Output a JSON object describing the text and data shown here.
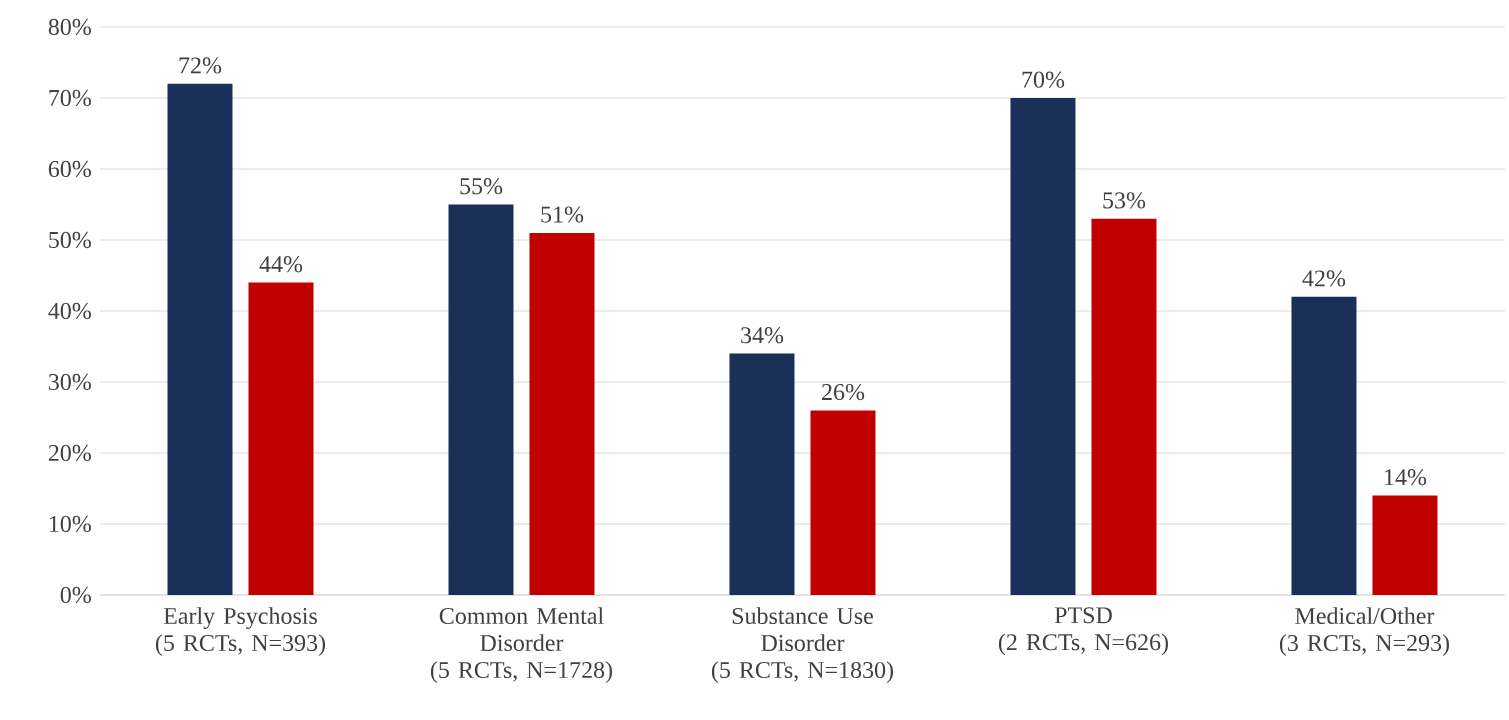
{
  "chart_data": {
    "type": "bar",
    "categories": [
      "Early Psychosis\n(5 RCTs, N=393)",
      "Common Mental\nDisorder\n(5 RCTs, N=1728)",
      "Substance Use\nDisorder\n(5 RCTs, N=1830)",
      "PTSD\n(2 RCTs, N=626)",
      "Medical/Other\n(3 RCTs, N=293)"
    ],
    "series": [
      {
        "color": "#1a3058",
        "values": [
          72,
          55,
          34,
          70,
          42
        ],
        "value_labels": [
          "72%",
          "55%",
          "34%",
          "70%",
          "42%"
        ]
      },
      {
        "color": "#c00000",
        "values": [
          44,
          51,
          26,
          53,
          14
        ],
        "value_labels": [
          "44%",
          "51%",
          "26%",
          "53%",
          "14%"
        ]
      }
    ],
    "ylim": [
      0,
      80
    ],
    "yticks": [
      {
        "value": 0,
        "label": "0%"
      },
      {
        "value": 10,
        "label": "10%"
      },
      {
        "value": 20,
        "label": "20%"
      },
      {
        "value": 30,
        "label": "30%"
      },
      {
        "value": 40,
        "label": "40%"
      },
      {
        "value": 50,
        "label": "50%"
      },
      {
        "value": 60,
        "label": "60%"
      },
      {
        "value": 70,
        "label": "70%"
      },
      {
        "value": 80,
        "label": "80%"
      }
    ],
    "grid": "y"
  }
}
